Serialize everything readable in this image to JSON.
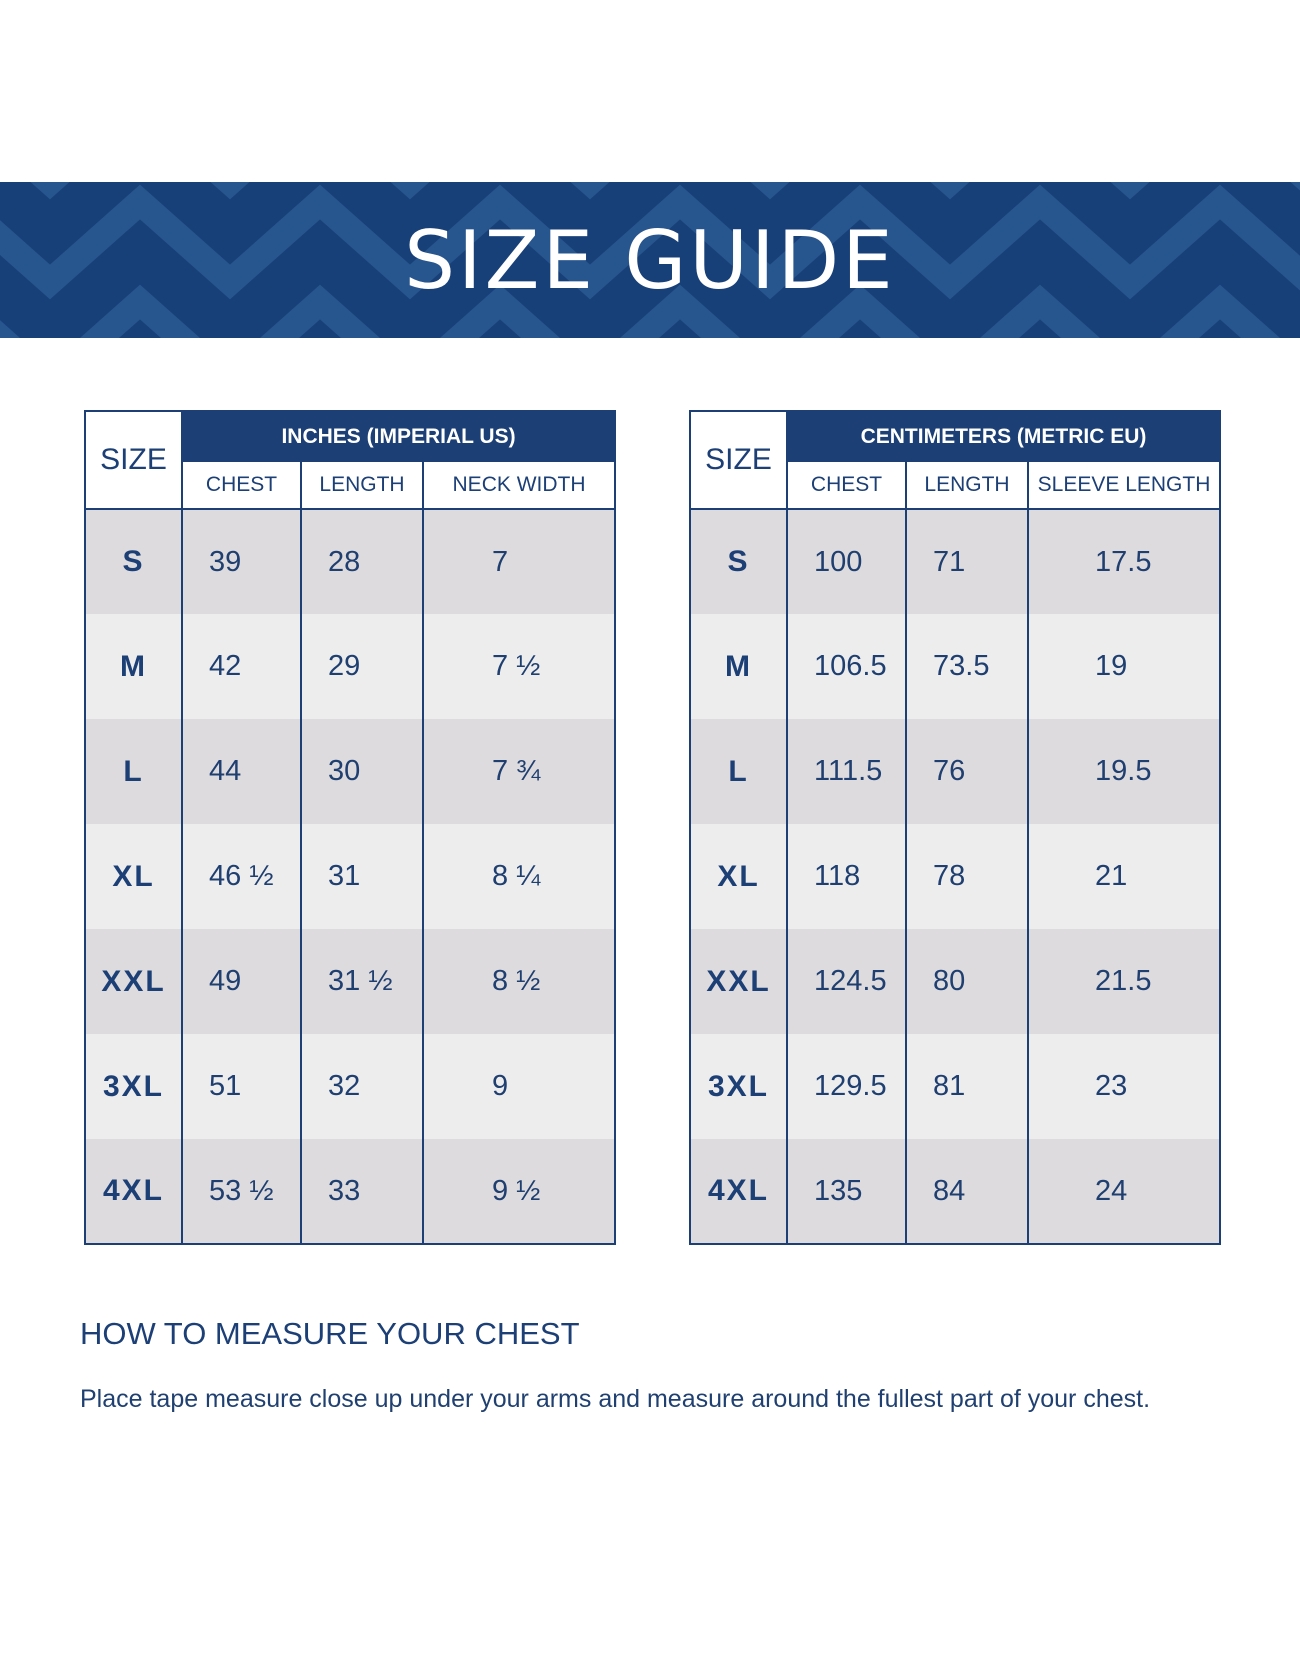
{
  "banner": {
    "title": "SIZE GUIDE"
  },
  "colors": {
    "brand_navy": "#173f78",
    "row_dark": "#dddbdd",
    "row_light": "#ededed"
  },
  "imperial": {
    "size_header": "SIZE",
    "group_header": "INCHES (IMPERIAL US)",
    "columns": [
      "CHEST",
      "LENGTH",
      "NECK WIDTH"
    ],
    "rows": [
      {
        "size": "S",
        "chest": "39",
        "length": "28",
        "neck": "7"
      },
      {
        "size": "M",
        "chest": "42",
        "length": "29",
        "neck": "7 ½"
      },
      {
        "size": "L",
        "chest": "44",
        "length": "30",
        "neck": "7 ¾"
      },
      {
        "size": "XL",
        "chest": "46 ½",
        "length": "31",
        "neck": "8 ¼"
      },
      {
        "size": "XXL",
        "chest": "49",
        "length": "31 ½",
        "neck": "8 ½"
      },
      {
        "size": "3XL",
        "chest": "51",
        "length": "32",
        "neck": "9"
      },
      {
        "size": "4XL",
        "chest": "53 ½",
        "length": "33",
        "neck": "9 ½"
      }
    ]
  },
  "metric": {
    "size_header": "SIZE",
    "group_header": "CENTIMETERS (METRIC EU)",
    "columns": [
      "CHEST",
      "LENGTH",
      "SLEEVE LENGTH"
    ],
    "rows": [
      {
        "size": "S",
        "chest": "100",
        "length": "71",
        "sleeve": "17.5"
      },
      {
        "size": "M",
        "chest": "106.5",
        "length": "73.5",
        "sleeve": "19"
      },
      {
        "size": "L",
        "chest": "111.5",
        "length": "76",
        "sleeve": "19.5"
      },
      {
        "size": "XL",
        "chest": "118",
        "length": "78",
        "sleeve": "21"
      },
      {
        "size": "XXL",
        "chest": "124.5",
        "length": "80",
        "sleeve": "21.5"
      },
      {
        "size": "3XL",
        "chest": "129.5",
        "length": "81",
        "sleeve": "23"
      },
      {
        "size": "4XL",
        "chest": "135",
        "length": "84",
        "sleeve": "24"
      }
    ]
  },
  "measure": {
    "title": "HOW TO MEASURE YOUR CHEST",
    "text": "Place tape measure close up under your arms and measure around the fullest part of your chest."
  }
}
